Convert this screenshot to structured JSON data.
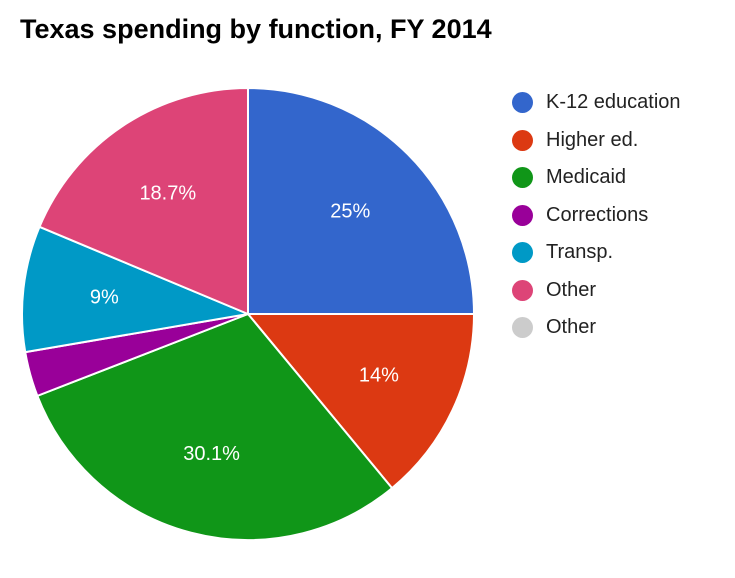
{
  "chart_data": {
    "type": "pie",
    "title": "Texas spending by function, FY 2014",
    "slices": [
      {
        "label": "K-12 education",
        "value": 25,
        "data_label": "25%",
        "color": "#3366cc"
      },
      {
        "label": "Higher ed.",
        "value": 14,
        "data_label": "14%",
        "color": "#dc3912"
      },
      {
        "label": "Medicaid",
        "value": 30.1,
        "data_label": "30.1%",
        "color": "#109618"
      },
      {
        "label": "Corrections",
        "value": 3.2,
        "data_label": "",
        "color": "#990099"
      },
      {
        "label": "Transp.",
        "value": 9,
        "data_label": "9%",
        "color": "#0099c6"
      },
      {
        "label": "Other",
        "value": 18.7,
        "data_label": "18.7%",
        "color": "#dd4477"
      },
      {
        "label": "Other",
        "value": 0,
        "data_label": "",
        "color": "#cccccc"
      }
    ],
    "legend_position": "right"
  }
}
